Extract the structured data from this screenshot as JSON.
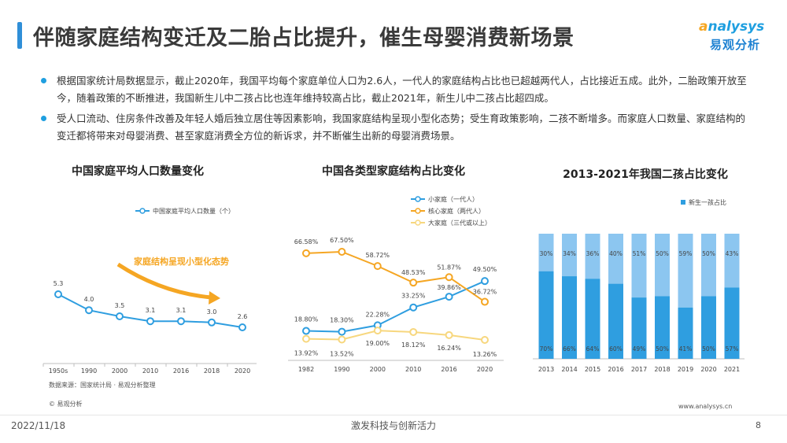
{
  "title": "伴随家庭结构变迁及二胎占比提升，催生母婴消费新场景",
  "logo": {
    "en_a": "a",
    "en_rest": "nalysys",
    "cn": "易观分析"
  },
  "bullets": [
    "根据国家统计局数据显示，截止2020年，我国平均每个家庭单位人口为2.6人，一代人的家庭结构占比也已超越两代人，占比接近五成。此外，二胎政策开放至今，随着政策的不断推进，我国新生儿中二孩占比也连年维持较高占比，截止2021年，新生儿中二孩占比超四成。",
    "受人口流动、住房条件改善及年轻人婚后独立居住等因素影响，我国家庭结构呈现小型化态势；受生育政策影响，二孩不断增多。而家庭人口数量、家庭结构的变迁都将带来对母婴消费、甚至家庭消费全方位的新诉求，并不断催生出新的母婴消费场景。"
  ],
  "chart_data": [
    {
      "type": "line",
      "title": "中国家庭平均人口数量变化",
      "categories": [
        "1950s",
        "1990",
        "2000",
        "2010",
        "2016",
        "2018",
        "2020"
      ],
      "series": [
        {
          "name": "中国家庭平均人口数量（个）",
          "values": [
            5.3,
            4.0,
            3.5,
            3.1,
            3.1,
            3.0,
            2.6
          ],
          "color": "#2f9ee0"
        }
      ],
      "annotation": "家庭结构呈现小型化态势"
    },
    {
      "type": "line",
      "title": "中国各类型家庭结构占比变化",
      "categories": [
        "1982",
        "1990",
        "2000",
        "2010",
        "2016",
        "2020"
      ],
      "series": [
        {
          "name": "小家庭（一代人）",
          "values": [
            18.8,
            18.3,
            22.28,
            33.25,
            39.86,
            49.5
          ],
          "color": "#2f9ee0"
        },
        {
          "name": "核心家庭（两代人）",
          "values": [
            66.58,
            67.5,
            58.72,
            48.53,
            51.87,
            36.72
          ],
          "color": "#f5a623"
        },
        {
          "name": "大家庭（三代或以上）",
          "values": [
            13.92,
            13.52,
            19.0,
            18.12,
            16.24,
            13.26
          ],
          "color": "#f7d77e"
        }
      ]
    },
    {
      "type": "bar",
      "stacked": true,
      "title": "2013-2021年我国二孩占比变化",
      "categories": [
        "2013",
        "2014",
        "2015",
        "2016",
        "2017",
        "2018",
        "2019",
        "2020",
        "2021"
      ],
      "series": [
        {
          "name": "新生一孩占比",
          "values": [
            70,
            66,
            64,
            60,
            49,
            50,
            41,
            50,
            57
          ],
          "color": "#2f9ee0"
        },
        {
          "name": "",
          "values": [
            30,
            34,
            36,
            40,
            51,
            50,
            59,
            50,
            43
          ],
          "color": "#8cc6f0"
        }
      ]
    }
  ],
  "source_note": "数据来源：国家统计局 · 易观分析整理",
  "small_logo": "© 易观分析",
  "url": "www.analysys.cn",
  "footer": {
    "date": "2022/11/18",
    "slogan": "激发科技与创新活力",
    "page": "8"
  }
}
